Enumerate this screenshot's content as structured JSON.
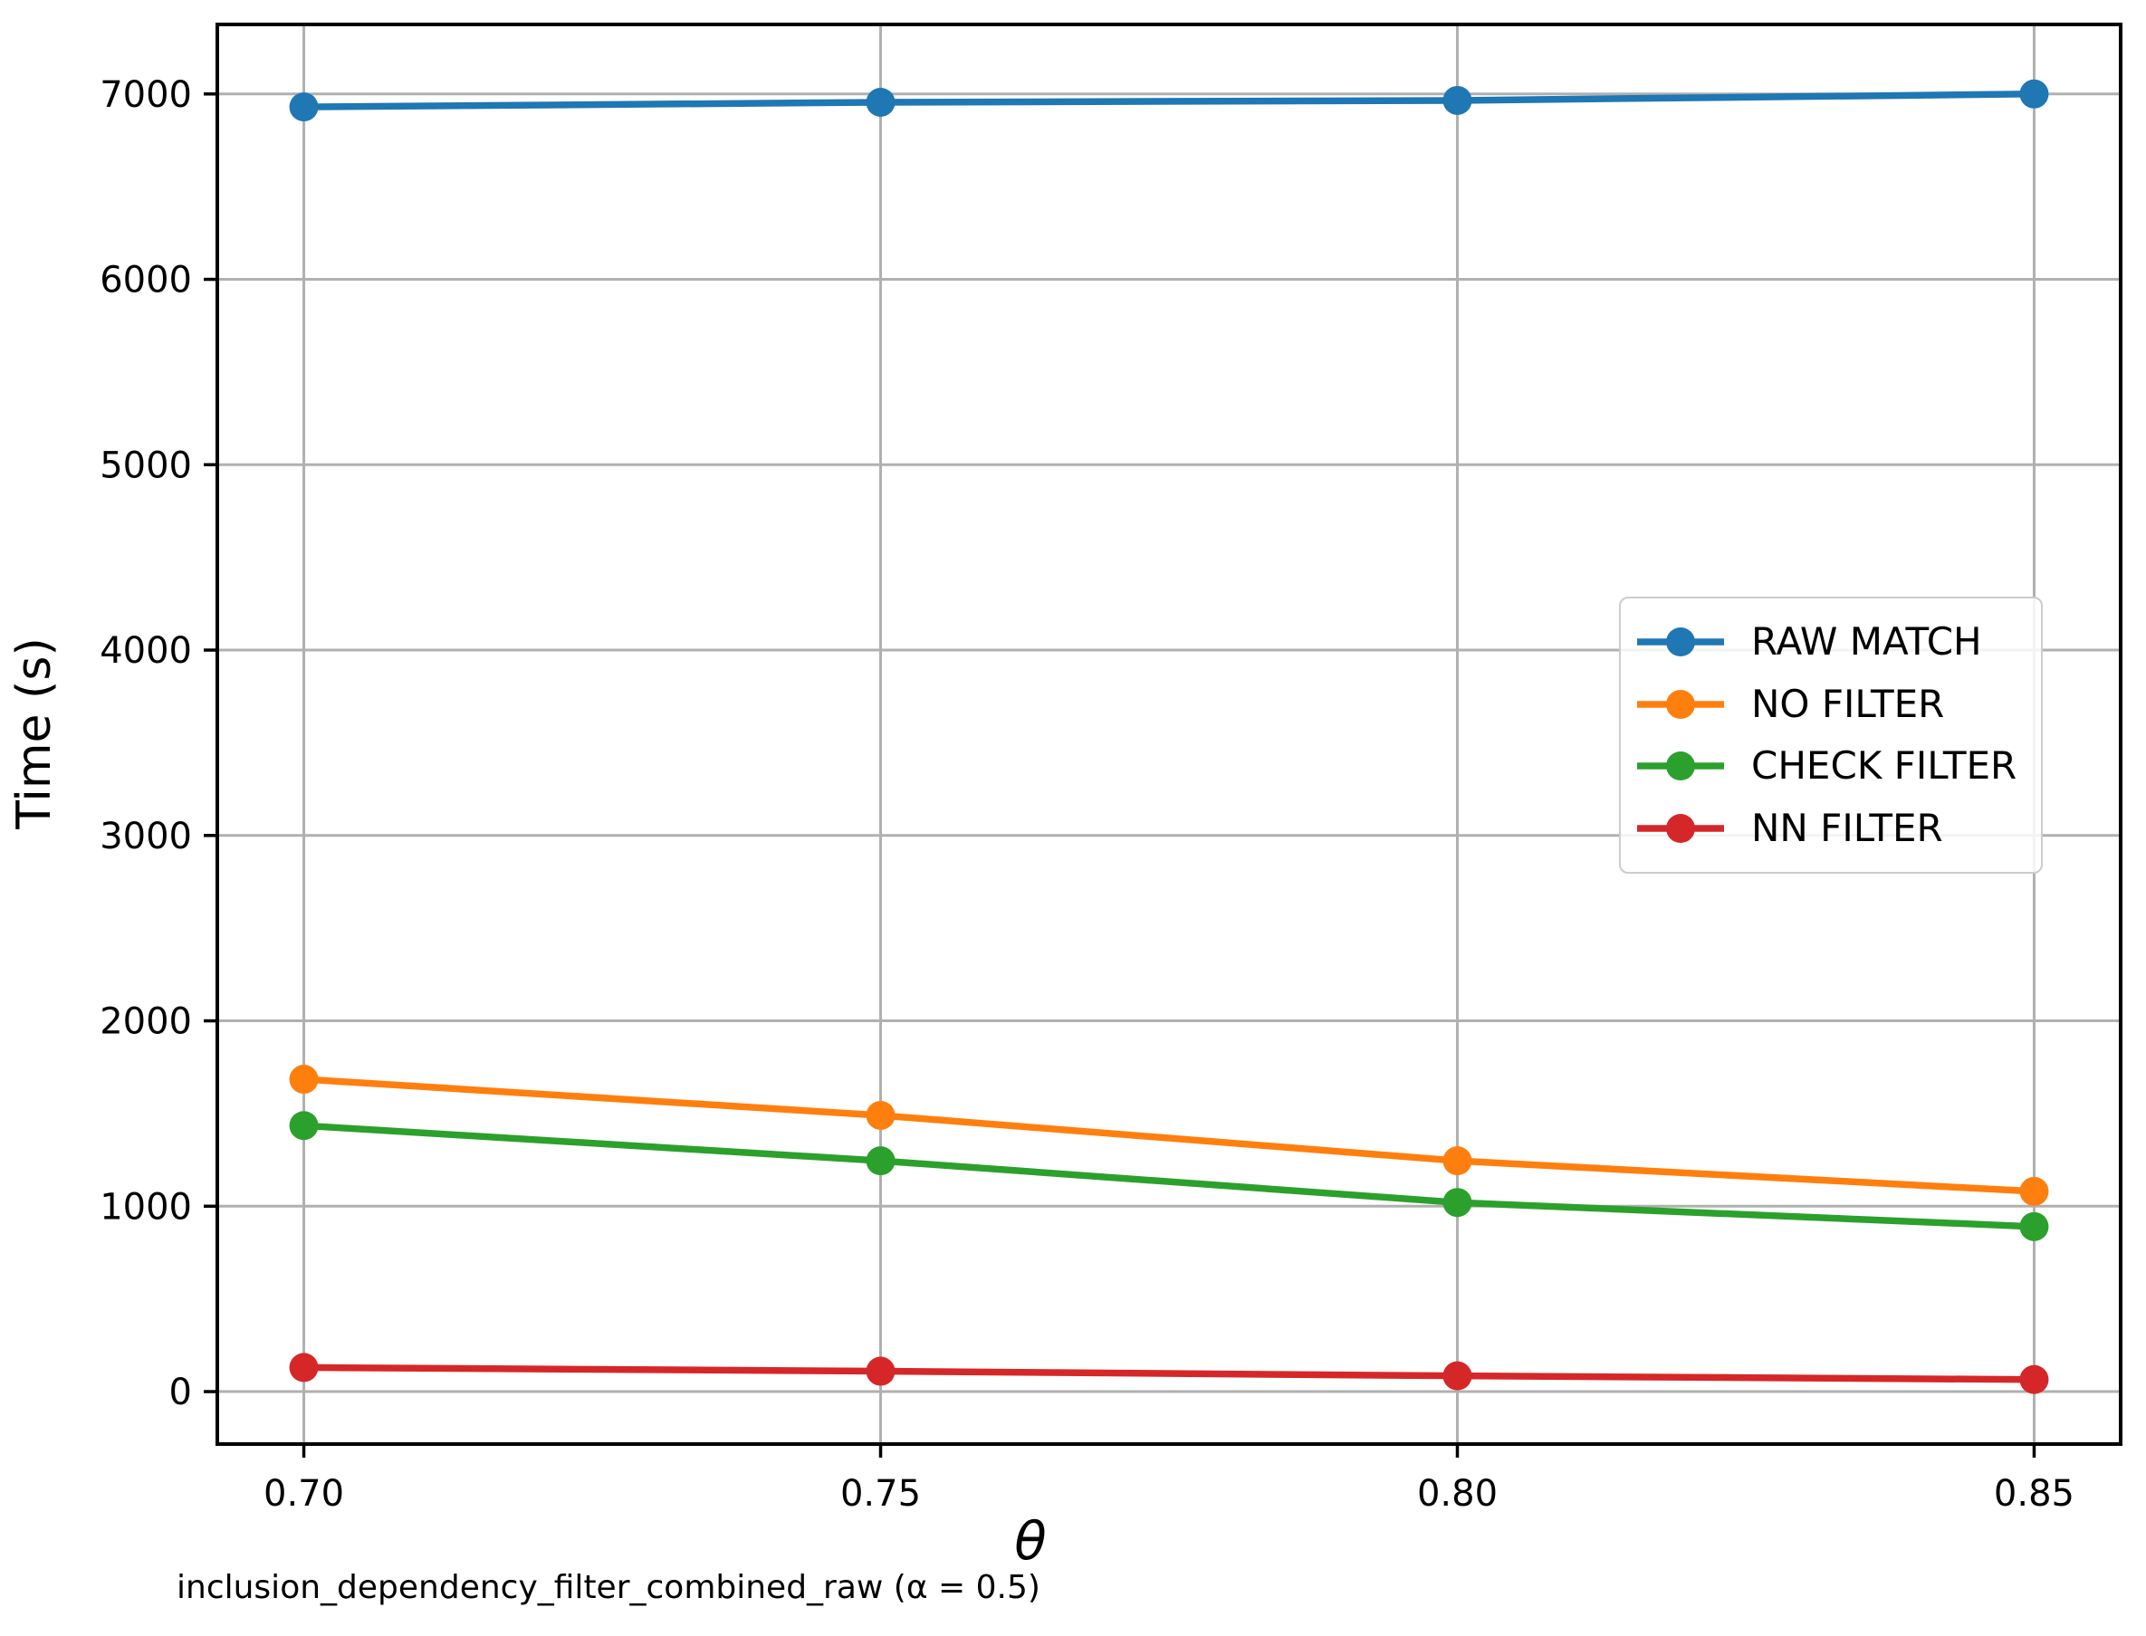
{
  "chart_data": {
    "type": "line",
    "title": "",
    "xlabel": "θ",
    "ylabel": "Time (s)",
    "caption": "inclusion_dependency_filter_combined_raw (α = 0.5)",
    "x": [
      0.7,
      0.75,
      0.8,
      0.85
    ],
    "x_tick_labels": [
      "0.70",
      "0.75",
      "0.80",
      "0.85"
    ],
    "y_ticks": [
      0,
      1000,
      2000,
      3000,
      4000,
      5000,
      6000,
      7000
    ],
    "xlim": [
      0.6925,
      0.8575
    ],
    "ylim": [
      -283,
      7375
    ],
    "grid": true,
    "grid_color": "#b0b0b0",
    "spine_color": "#000000",
    "legend_position": "center right",
    "series": [
      {
        "name": "RAW MATCH",
        "color": "#1f77b4",
        "values": [
          6930,
          6955,
          6965,
          7000
        ]
      },
      {
        "name": "NO FILTER",
        "color": "#ff7f0e",
        "values": [
          1685,
          1490,
          1245,
          1080
        ]
      },
      {
        "name": "CHECK FILTER",
        "color": "#2ca02c",
        "values": [
          1435,
          1245,
          1020,
          890
        ]
      },
      {
        "name": "NN FILTER",
        "color": "#d62728",
        "values": [
          130,
          110,
          85,
          65
        ]
      }
    ]
  }
}
